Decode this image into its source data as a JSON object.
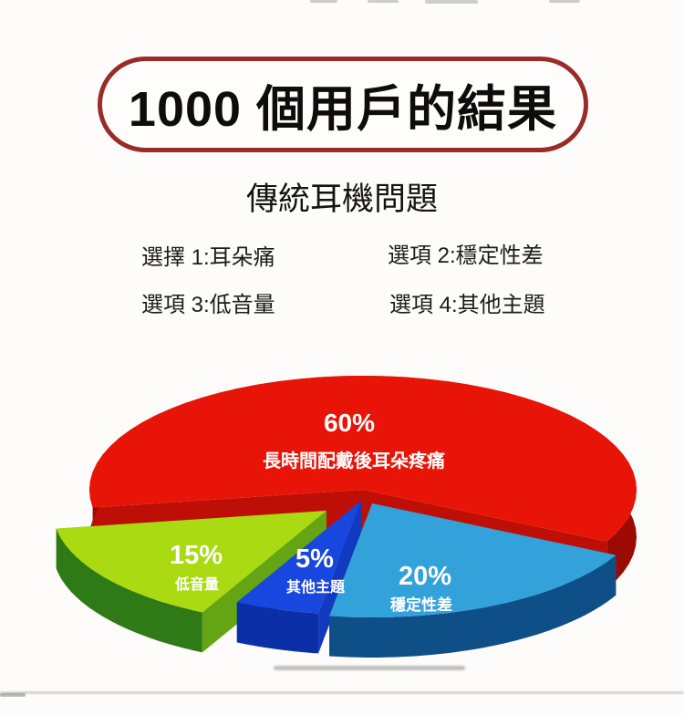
{
  "title": "1000 個用戶的結果",
  "subtitle": "傳統耳機問題",
  "options": [
    {
      "label": "選擇 1:耳朵痛"
    },
    {
      "label": "選項 2:穩定性差"
    },
    {
      "label": "選項 3:低音量"
    },
    {
      "label": "選項 4:其他主題"
    }
  ],
  "chart_data": {
    "type": "pie",
    "style": "3d-exploded",
    "title": "傳統耳機問題",
    "sample_size": 1000,
    "legend": "none",
    "slices": [
      {
        "id": "ear-pain",
        "label": "長時間配戴後耳朵疼痛",
        "percent": 60,
        "percent_label": "60%",
        "color": "#e91408",
        "side_color": "#9b0b04"
      },
      {
        "id": "poor-stability",
        "label": "穩定性差",
        "percent": 20,
        "percent_label": "20%",
        "color": "#33a1da",
        "side_color": "#0f4f88"
      },
      {
        "id": "other-topics",
        "label": "其他主題",
        "percent": 5,
        "percent_label": "5%",
        "color": "#1847e0",
        "side_color": "#0b2fa6"
      },
      {
        "id": "low-volume",
        "label": "低音量",
        "percent": 15,
        "percent_label": "15%",
        "color": "#a9da12",
        "side_color": "#2e7a16"
      }
    ]
  },
  "colors": {
    "pill_border": "#992b29",
    "title_text": "#0d0d0d",
    "body_text": "#1c1c1c",
    "slice_label_text": "#ffffff",
    "background": "#fdfcfa"
  }
}
